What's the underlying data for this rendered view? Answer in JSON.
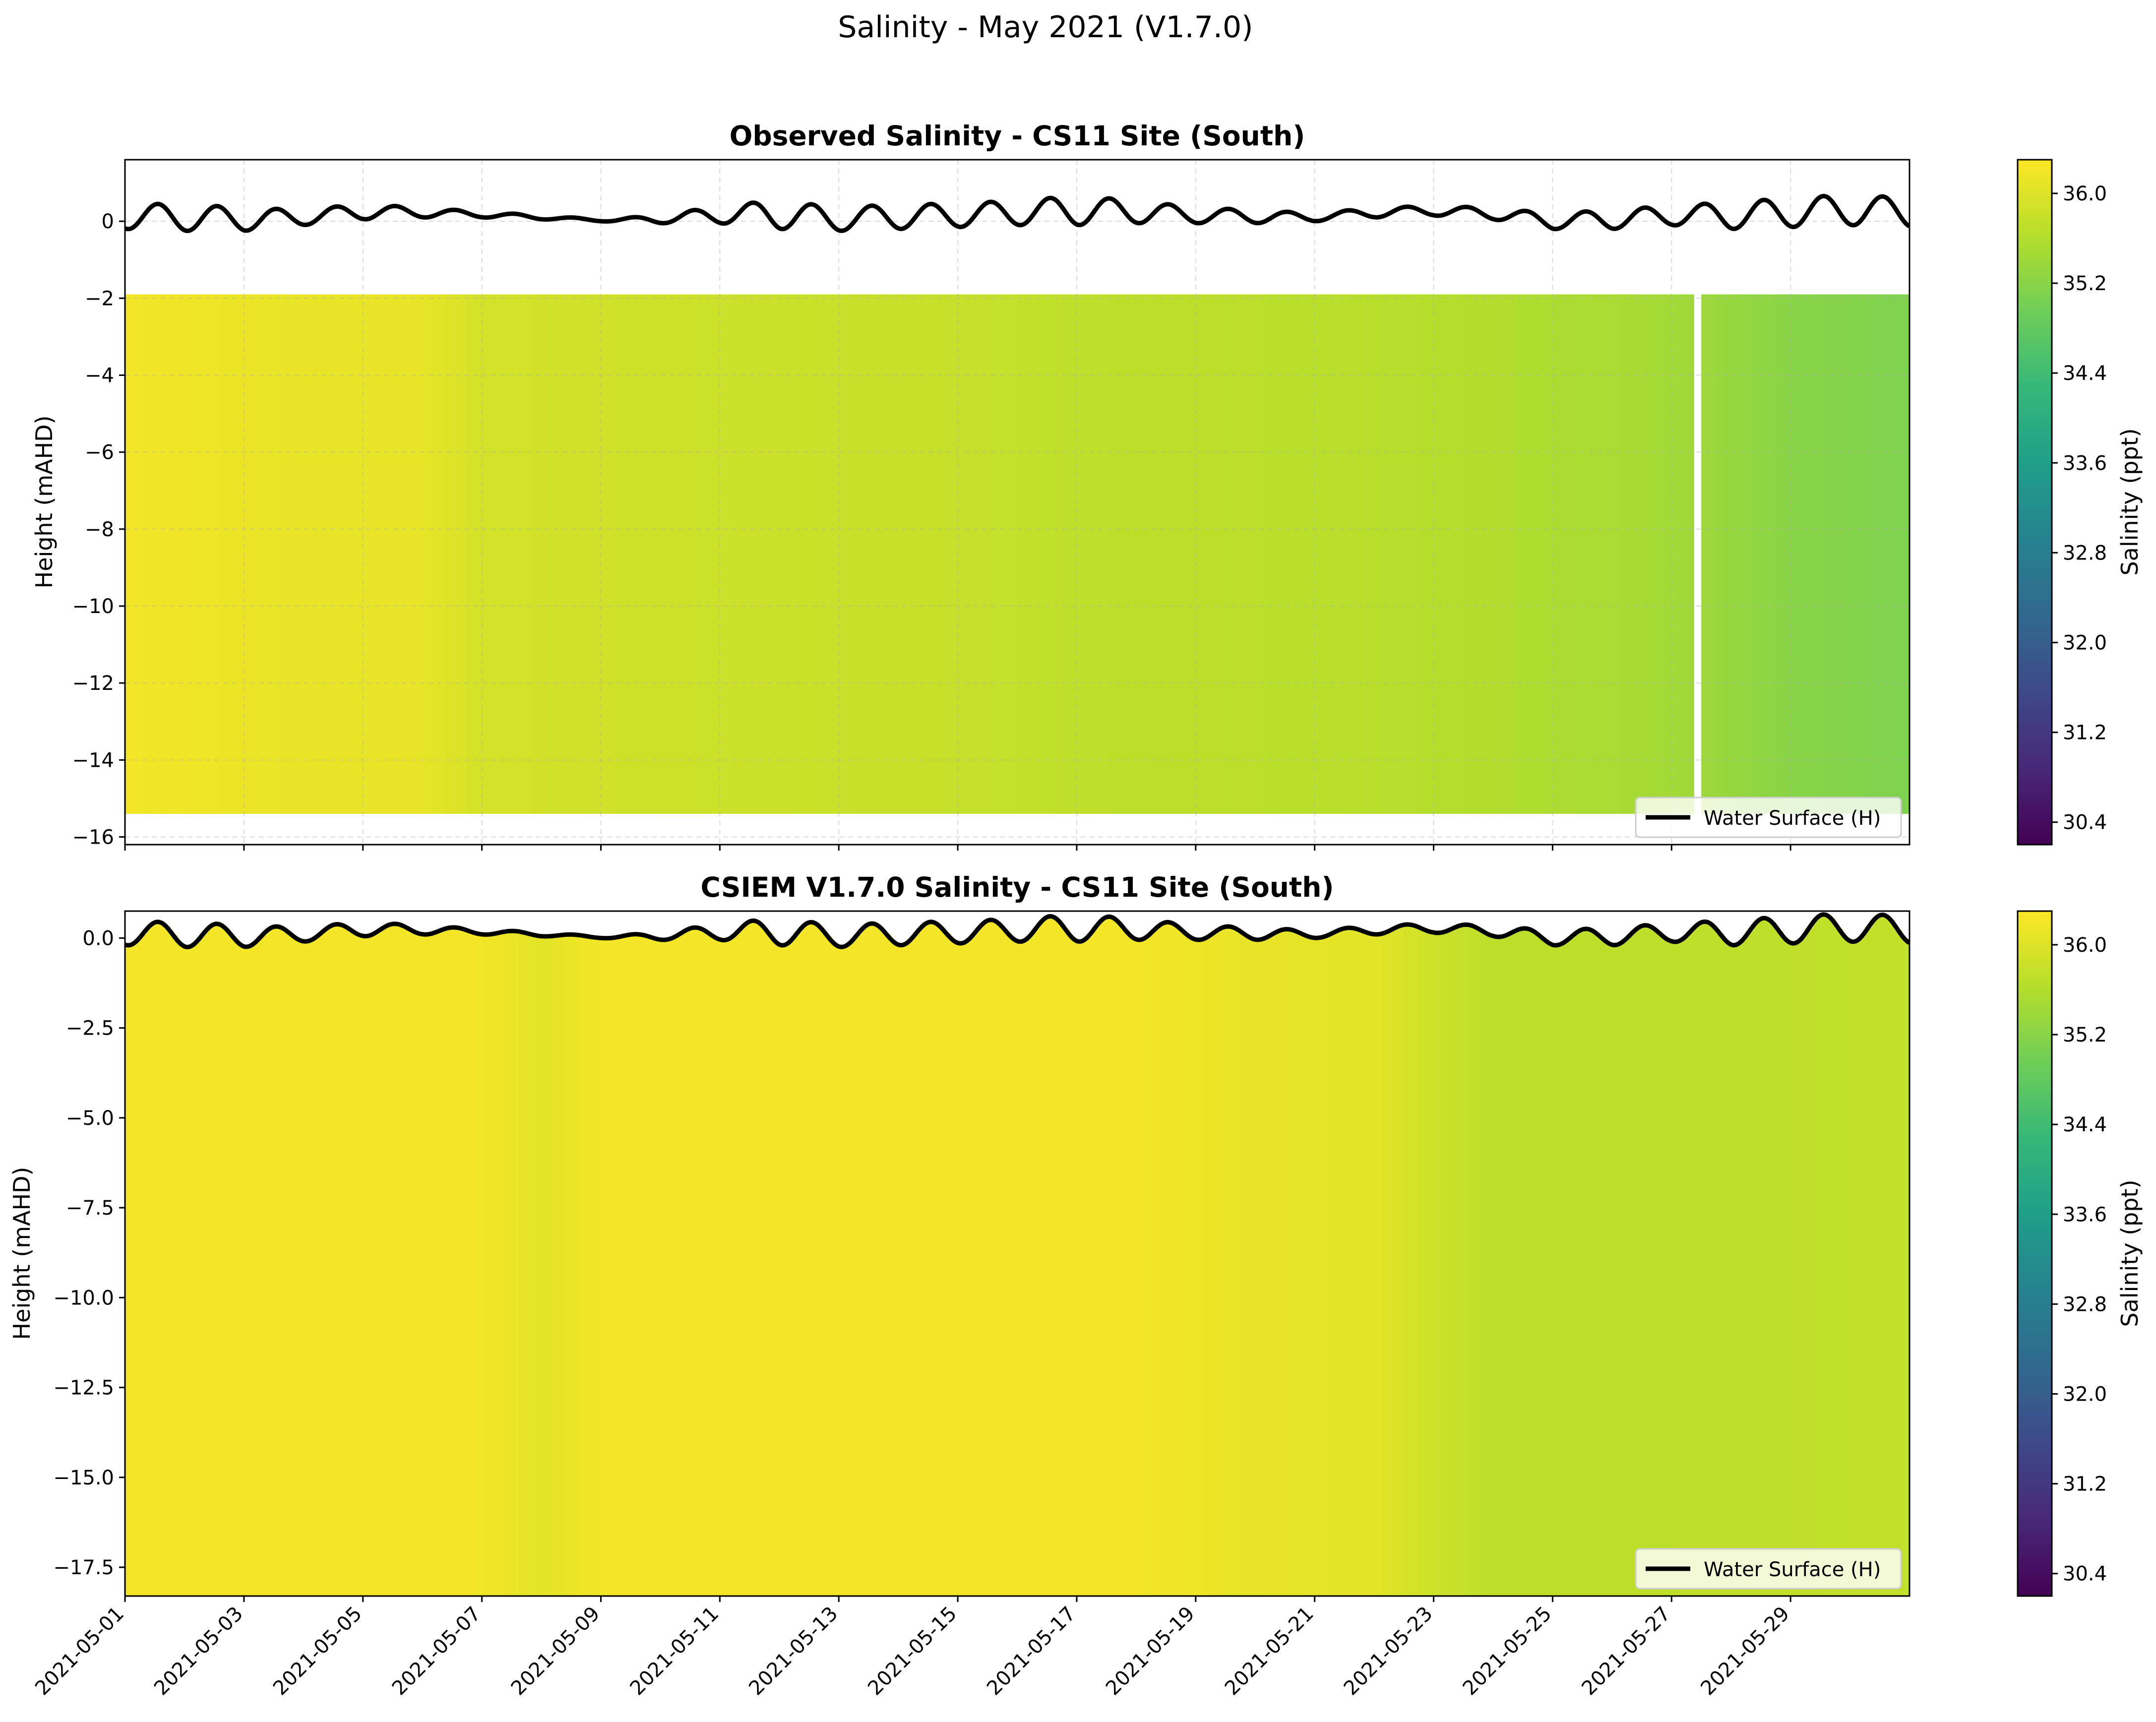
{
  "figure": {
    "suptitle": "Salinity - May 2021 (V1.7.0)"
  },
  "colormap": {
    "name": "viridis",
    "stops": [
      "#440154",
      "#482878",
      "#3e4989",
      "#31688e",
      "#26828e",
      "#1f9e89",
      "#35b779",
      "#6ece58",
      "#b5de2b",
      "#fde725"
    ]
  },
  "chart_data": [
    {
      "type": "heatmap",
      "title": "Observed Salinity - CS11 Site (South)",
      "xlabel": "",
      "ylabel": "Height (mAHD)",
      "colorbar_label": "Salinity (ppt)",
      "x_range": [
        "2021-05-01",
        "2021-05-31"
      ],
      "ylim": [
        -16.2,
        1.6
      ],
      "yticks": [
        0,
        -2,
        -4,
        -6,
        -8,
        -10,
        -12,
        -14,
        -16
      ],
      "ytick_labels": [
        "0",
        "−2",
        "−4",
        "−6",
        "−8",
        "−10",
        "−12",
        "−14",
        "−16"
      ],
      "xticks": [
        "2021-05-01",
        "2021-05-03",
        "2021-05-05",
        "2021-05-07",
        "2021-05-09",
        "2021-05-11",
        "2021-05-13",
        "2021-05-15",
        "2021-05-17",
        "2021-05-19",
        "2021-05-21",
        "2021-05-23",
        "2021-05-25",
        "2021-05-27",
        "2021-05-29"
      ],
      "xtick_labels_visible": false,
      "grid": true,
      "clim": [
        30.2,
        36.3
      ],
      "colorbar_ticks": [
        36.0,
        35.2,
        34.4,
        33.6,
        32.8,
        32.0,
        31.2,
        30.4
      ],
      "colorbar_tick_labels": [
        "36.0",
        "35.2",
        "34.4",
        "33.6",
        "32.8",
        "32.0",
        "31.2",
        "30.4"
      ],
      "data_top": -1.9,
      "data_bottom": -15.4,
      "missing_interval": [
        "2021-05-27T08:00",
        "2021-05-27T11:00"
      ],
      "salinity_by_day": {
        "dates": [
          "2021-05-01",
          "2021-05-04",
          "2021-05-06",
          "2021-05-07",
          "2021-05-10",
          "2021-05-14",
          "2021-05-18",
          "2021-05-22",
          "2021-05-25",
          "2021-05-27",
          "2021-05-29",
          "2021-05-31"
        ],
        "values": [
          36.2,
          36.1,
          36.1,
          35.9,
          35.85,
          35.8,
          35.7,
          35.65,
          35.55,
          35.45,
          35.2,
          35.1
        ]
      },
      "legend": {
        "label": "Water Surface (H)",
        "location": "lower right"
      }
    },
    {
      "type": "heatmap",
      "title": "CSIEM V1.7.0 Salinity - CS11 Site (South)",
      "xlabel": "",
      "ylabel": "Height (mAHD)",
      "colorbar_label": "Salinity (ppt)",
      "x_range": [
        "2021-05-01",
        "2021-05-31"
      ],
      "ylim": [
        -18.3,
        0.75
      ],
      "yticks": [
        0.0,
        -2.5,
        -5.0,
        -7.5,
        -10.0,
        -12.5,
        -15.0,
        -17.5
      ],
      "ytick_labels": [
        "0.0",
        "−2.5",
        "−5.0",
        "−7.5",
        "−10.0",
        "−12.5",
        "−15.0",
        "−17.5"
      ],
      "xticks": [
        "2021-05-01",
        "2021-05-03",
        "2021-05-05",
        "2021-05-07",
        "2021-05-09",
        "2021-05-11",
        "2021-05-13",
        "2021-05-15",
        "2021-05-17",
        "2021-05-19",
        "2021-05-21",
        "2021-05-23",
        "2021-05-25",
        "2021-05-27",
        "2021-05-29"
      ],
      "xtick_labels": [
        "2021-05-01",
        "2021-05-03",
        "2021-05-05",
        "2021-05-07",
        "2021-05-09",
        "2021-05-11",
        "2021-05-13",
        "2021-05-15",
        "2021-05-17",
        "2021-05-19",
        "2021-05-21",
        "2021-05-23",
        "2021-05-25",
        "2021-05-27",
        "2021-05-29"
      ],
      "grid": false,
      "clim": [
        30.2,
        36.3
      ],
      "colorbar_ticks": [
        36.0,
        35.2,
        34.4,
        33.6,
        32.8,
        32.0,
        31.2,
        30.4
      ],
      "colorbar_tick_labels": [
        "36.0",
        "35.2",
        "34.4",
        "33.6",
        "32.8",
        "32.0",
        "31.2",
        "30.4"
      ],
      "data_top": "water surface",
      "data_bottom": -18.3,
      "salinity_by_day": {
        "dates": [
          "2021-05-01",
          "2021-05-07",
          "2021-05-08",
          "2021-05-09",
          "2021-05-18",
          "2021-05-20",
          "2021-05-22",
          "2021-05-23",
          "2021-05-24",
          "2021-05-26",
          "2021-05-31"
        ],
        "values": [
          36.2,
          36.2,
          36.05,
          36.2,
          36.2,
          36.1,
          36.05,
          35.85,
          35.7,
          35.7,
          35.75
        ]
      },
      "legend": {
        "label": "Water Surface (H)",
        "location": "lower right"
      }
    }
  ],
  "water_surface": {
    "name": "Water Surface (H)",
    "dates": [
      "2021-05-01",
      "2021-05-02",
      "2021-05-03",
      "2021-05-04",
      "2021-05-05",
      "2021-05-06",
      "2021-05-07",
      "2021-05-08",
      "2021-05-09",
      "2021-05-10",
      "2021-05-11",
      "2021-05-12",
      "2021-05-13",
      "2021-05-14",
      "2021-05-15",
      "2021-05-16",
      "2021-05-17",
      "2021-05-18",
      "2021-05-19",
      "2021-05-20",
      "2021-05-21",
      "2021-05-22",
      "2021-05-23",
      "2021-05-24",
      "2021-05-25",
      "2021-05-26",
      "2021-05-27",
      "2021-05-28",
      "2021-05-29",
      "2021-05-30",
      "2021-05-31"
    ],
    "high_m": [
      0.45,
      0.45,
      0.35,
      0.3,
      0.45,
      0.35,
      0.25,
      0.15,
      0.05,
      0.15,
      0.4,
      0.55,
      0.35,
      0.45,
      0.45,
      0.55,
      0.65,
      0.55,
      0.35,
      0.3,
      0.2,
      0.35,
      0.4,
      0.35,
      0.2,
      0.3,
      0.4,
      0.5,
      0.6,
      0.7,
      0.6
    ],
    "low_m": [
      -0.2,
      -0.25,
      -0.25,
      -0.1,
      0.05,
      0.1,
      0.1,
      0.05,
      0.0,
      -0.05,
      -0.05,
      -0.2,
      -0.25,
      -0.2,
      -0.15,
      -0.1,
      -0.1,
      -0.05,
      -0.05,
      -0.05,
      0.0,
      0.1,
      0.15,
      0.05,
      -0.2,
      -0.2,
      -0.1,
      -0.2,
      -0.15,
      -0.1,
      -0.15
    ]
  }
}
